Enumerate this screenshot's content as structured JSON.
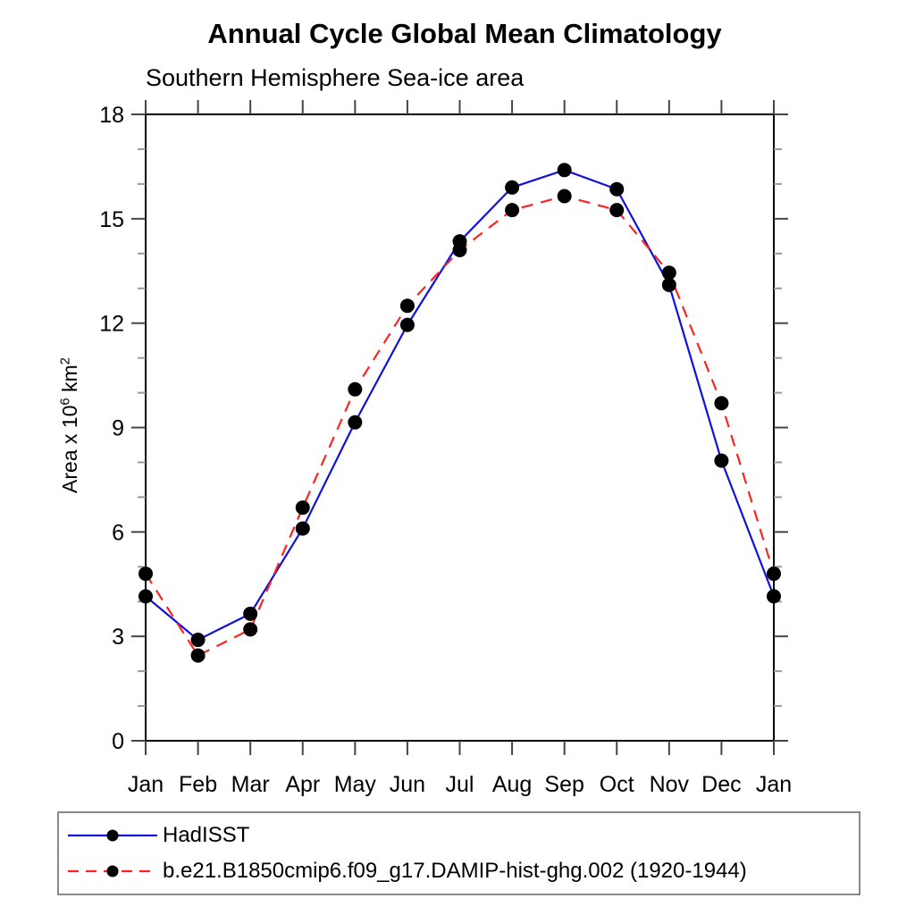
{
  "chart_data": {
    "type": "line",
    "title": "Annual Cycle Global Mean Climatology",
    "subtitle": "Southern Hemisphere Sea-ice area",
    "ylabel": "Area x 10⁶ km²",
    "ylabel_parts": {
      "base1": "Area x 10",
      "sup1": "6",
      "base2": " km",
      "sup2": "2"
    },
    "xlabel": "",
    "x_categories": [
      "Jan",
      "Feb",
      "Mar",
      "Apr",
      "May",
      "Jun",
      "Jul",
      "Aug",
      "Sep",
      "Oct",
      "Nov",
      "Dec",
      "Jan"
    ],
    "ylim": [
      0,
      18
    ],
    "ytick_major": [
      0,
      3,
      6,
      9,
      12,
      15,
      18
    ],
    "ytick_minor_step": 1,
    "grid": false,
    "legend_position": "bottom-left-box",
    "axis_color": "#000000",
    "major_tick_color": "#444444",
    "minor_tick_color": "#999999",
    "marker_color": "#000000",
    "series": [
      {
        "name": "HadISST",
        "color": "#1111dd",
        "line_style": "solid",
        "marker": "filled-circle",
        "values": [
          4.15,
          2.9,
          3.65,
          6.1,
          9.15,
          11.95,
          14.35,
          15.9,
          16.4,
          15.85,
          13.1,
          8.05,
          4.15
        ]
      },
      {
        "name": "b.e21.B1850cmip6.f09_g17.DAMIP-hist-ghg.002 (1920-1944)",
        "color": "#ff2222",
        "line_style": "dashed",
        "marker": "filled-circle",
        "values": [
          4.8,
          2.45,
          3.2,
          6.7,
          10.1,
          12.5,
          14.1,
          15.25,
          15.65,
          15.25,
          13.45,
          9.7,
          4.8
        ]
      }
    ]
  }
}
